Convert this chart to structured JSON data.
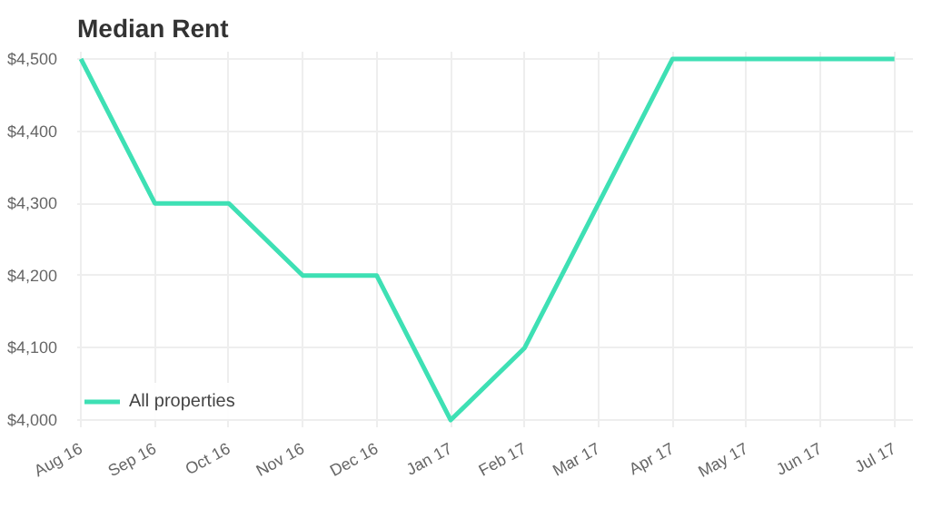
{
  "chart_data": {
    "type": "line",
    "title": "Median Rent",
    "categories": [
      "Aug 16",
      "Sep 16",
      "Oct 16",
      "Nov 16",
      "Dec 16",
      "Jan 17",
      "Feb 17",
      "Mar 17",
      "Apr 17",
      "May 17",
      "Jun 17",
      "Jul 17"
    ],
    "series": [
      {
        "name": "All properties",
        "color": "#3ee0b4",
        "values": [
          4500,
          4300,
          4300,
          4200,
          4200,
          4000,
          4100,
          4300,
          4500,
          4500,
          4500,
          4500
        ]
      }
    ],
    "ylim": [
      4000,
      4500
    ],
    "yticks": [
      {
        "value": 4000,
        "label": "$4,000"
      },
      {
        "value": 4100,
        "label": "$4,100"
      },
      {
        "value": 4200,
        "label": "$4,200"
      },
      {
        "value": 4300,
        "label": "$4,300"
      },
      {
        "value": 4400,
        "label": "$4,400"
      },
      {
        "value": 4500,
        "label": "$4,500"
      }
    ],
    "grid": true,
    "legend": "bottom left",
    "marker": "none",
    "line_style": "solid"
  }
}
